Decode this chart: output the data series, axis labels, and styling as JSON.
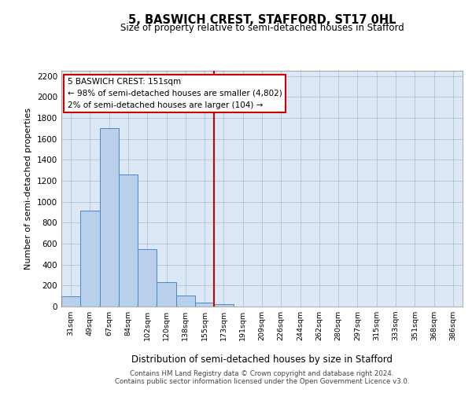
{
  "title": "5, BASWICH CREST, STAFFORD, ST17 0HL",
  "subtitle": "Size of property relative to semi-detached houses in Stafford",
  "xlabel": "Distribution of semi-detached houses by size in Stafford",
  "ylabel": "Number of semi-detached properties",
  "footnote1": "Contains HM Land Registry data © Crown copyright and database right 2024.",
  "footnote2": "Contains public sector information licensed under the Open Government Licence v3.0.",
  "bar_labels": [
    "31sqm",
    "49sqm",
    "67sqm",
    "84sqm",
    "102sqm",
    "120sqm",
    "138sqm",
    "155sqm",
    "173sqm",
    "191sqm",
    "209sqm",
    "226sqm",
    "244sqm",
    "262sqm",
    "280sqm",
    "297sqm",
    "315sqm",
    "333sqm",
    "351sqm",
    "368sqm",
    "386sqm"
  ],
  "bar_heights": [
    97,
    913,
    1700,
    1258,
    545,
    236,
    104,
    40,
    20,
    0,
    0,
    0,
    0,
    0,
    0,
    0,
    0,
    0,
    0,
    0,
    0
  ],
  "bar_color": "#b8d0ea",
  "bar_edge_color": "#4a86c8",
  "vline_color": "#cc0000",
  "annotation_title": "5 BASWICH CREST: 151sqm",
  "annotation_line1": "← 98% of semi-detached houses are smaller (4,802)",
  "annotation_line2": "2% of semi-detached houses are larger (104) →",
  "annotation_box_edge": "#cc0000",
  "ylim": [
    0,
    2250
  ],
  "yticks": [
    0,
    200,
    400,
    600,
    800,
    1000,
    1200,
    1400,
    1600,
    1800,
    2000,
    2200
  ],
  "background_color": "#ffffff",
  "plot_bg_color": "#dce8f5",
  "grid_color": "#b0c4d8"
}
